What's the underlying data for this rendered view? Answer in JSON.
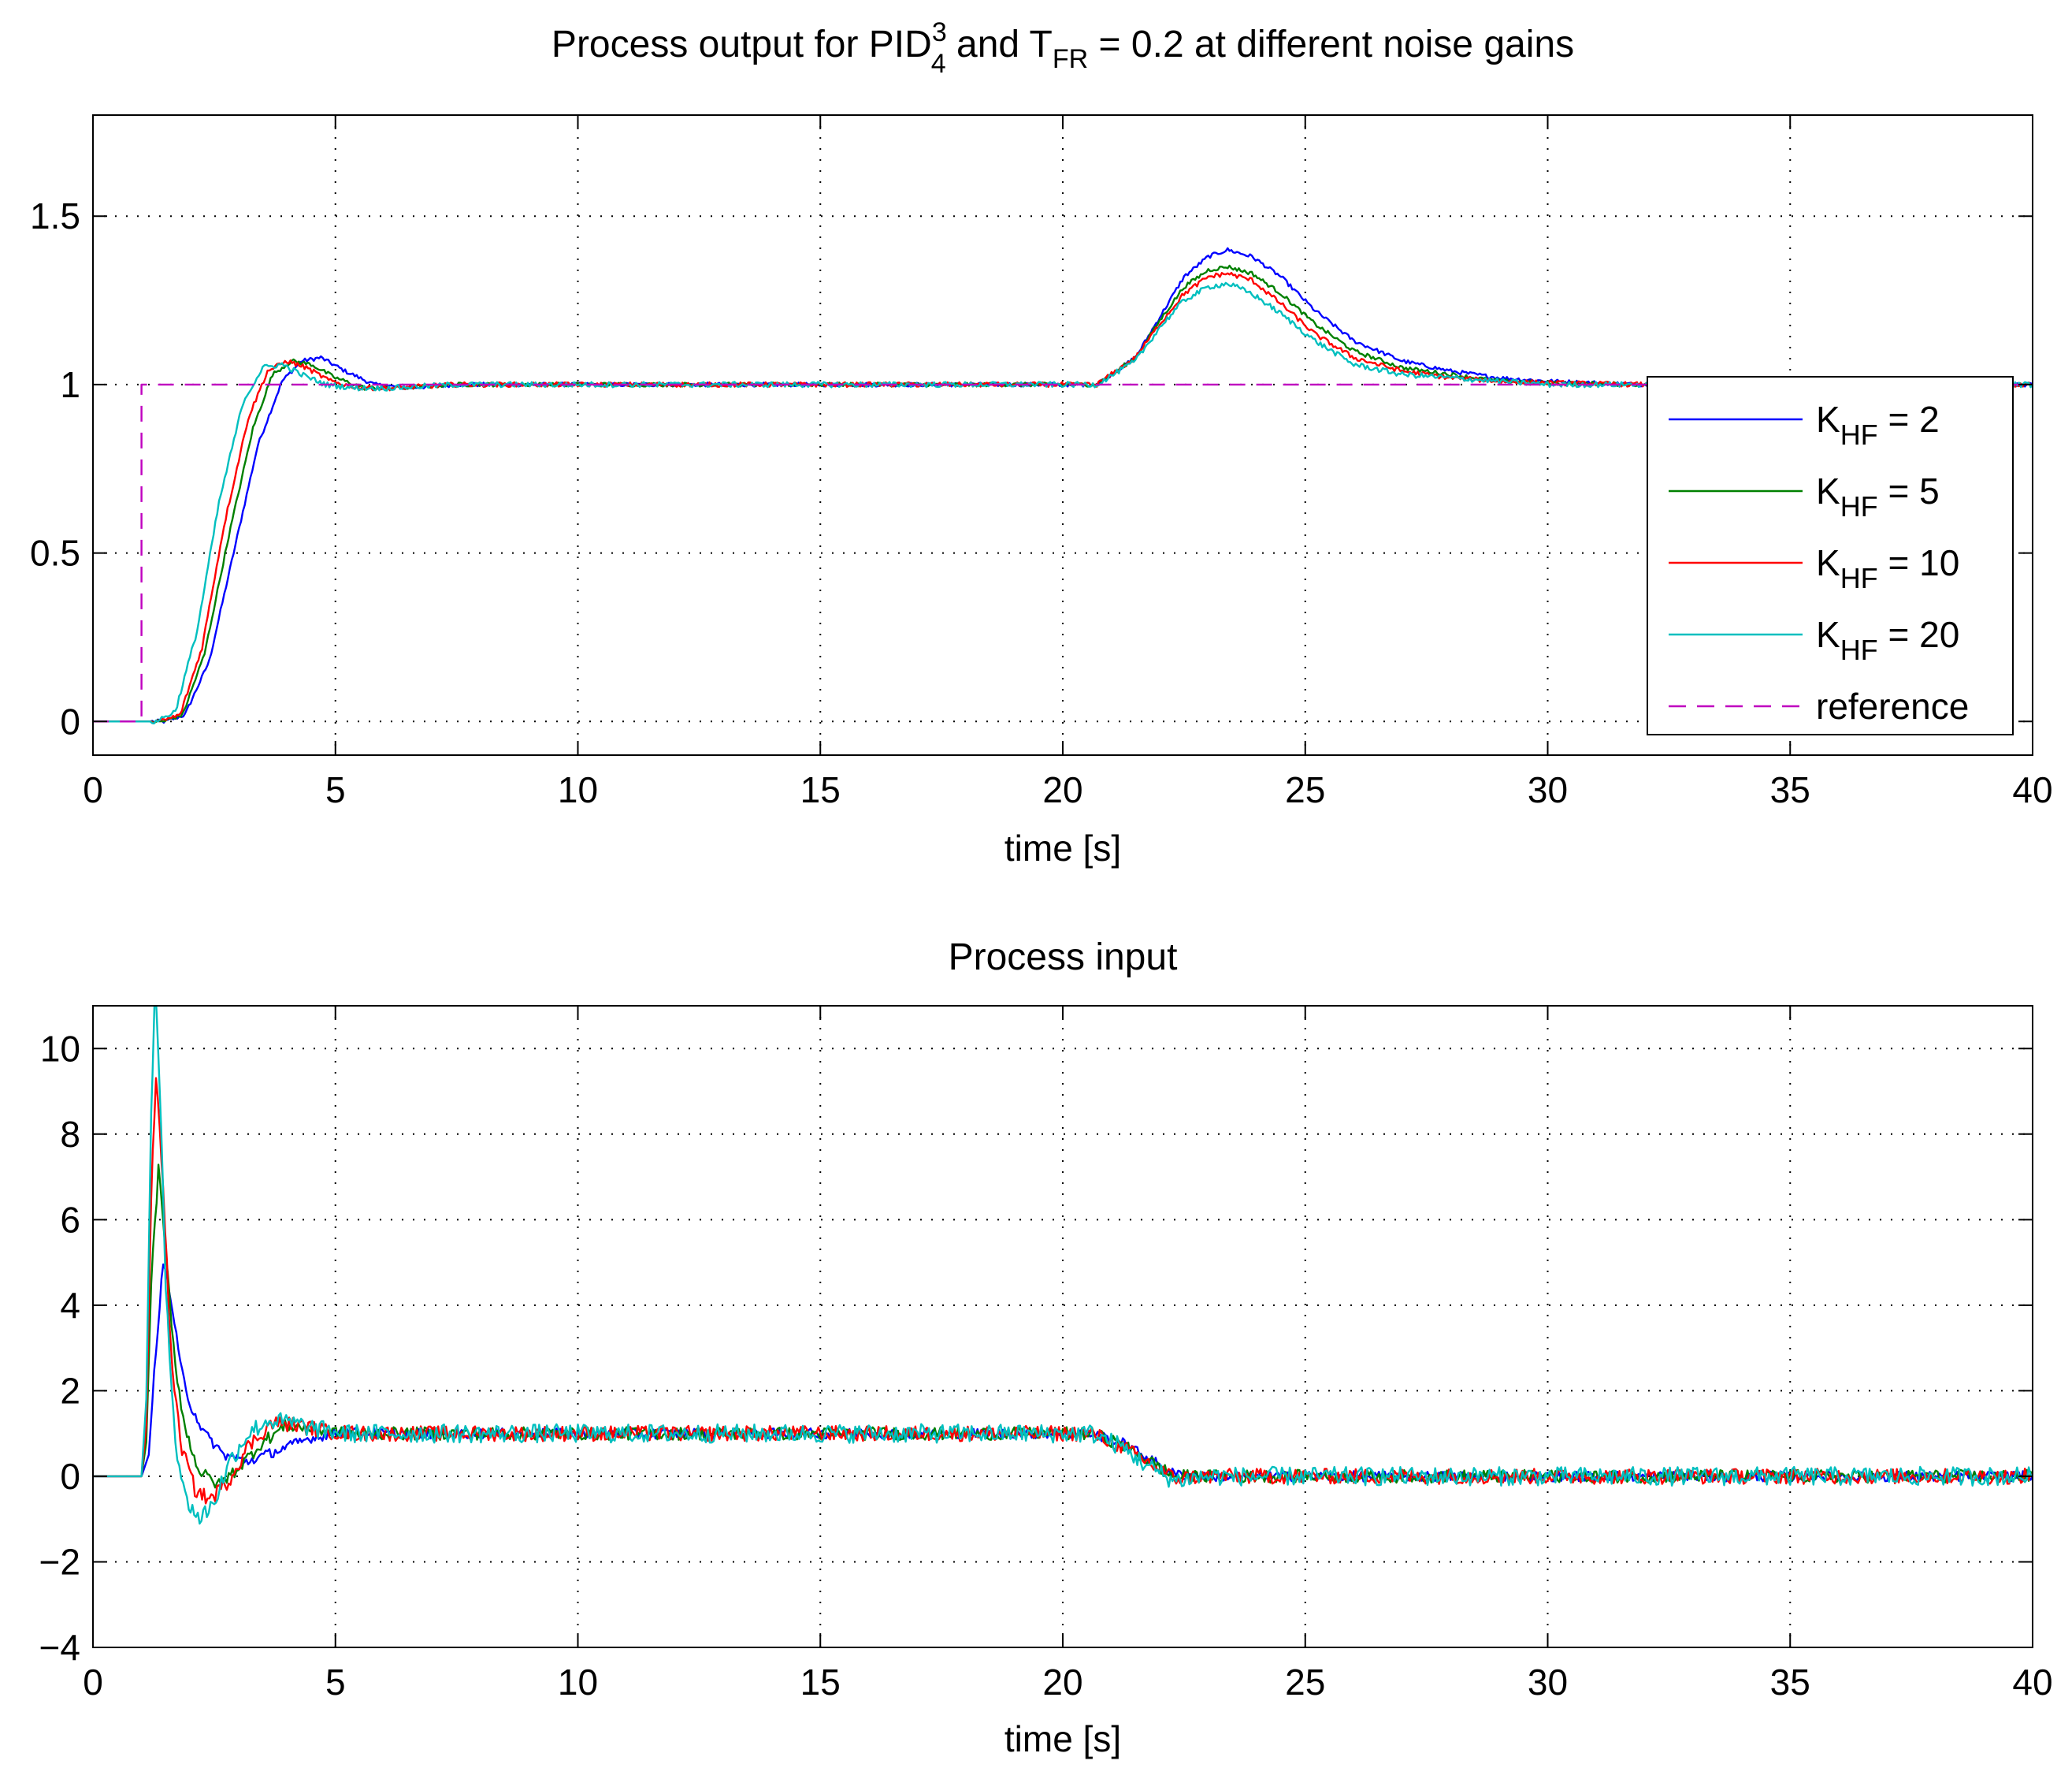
{
  "chart_data": [
    {
      "type": "line",
      "title": {
        "prefix": "Process output for PID",
        "sup": "3",
        "sub": "4",
        "middle": " and T",
        "sub2": "FR",
        "suffix": " = 0.2 at different noise gains"
      },
      "xlabel": "time [s]",
      "ylabel": "",
      "xlim": [
        0,
        40
      ],
      "ylim": [
        -0.1,
        1.8
      ],
      "xticks": [
        0,
        5,
        10,
        15,
        20,
        25,
        30,
        35,
        40
      ],
      "yticks": [
        0,
        0.5,
        1,
        1.5
      ],
      "ytick_labels": [
        "0",
        "0.5",
        "1",
        "1.5"
      ],
      "grid": true,
      "legend_position": "right",
      "legend": [
        {
          "base": "K",
          "sub": "HF",
          "rest": " = 2",
          "color": "#0000ff",
          "dashed": false
        },
        {
          "base": "K",
          "sub": "HF",
          "rest": " = 5",
          "color": "#008000",
          "dashed": false
        },
        {
          "base": "K",
          "sub": "HF",
          "rest": " = 10",
          "color": "#ff0000",
          "dashed": false
        },
        {
          "base": "K",
          "sub": "HF",
          "rest": " = 20",
          "color": "#00bfbf",
          "dashed": false
        },
        {
          "base": "reference",
          "sub": "",
          "rest": "",
          "color": "#bf00bf",
          "dashed": true
        }
      ],
      "series": [
        {
          "name": "K_HF = 2",
          "color": "#0000ff",
          "x": [
            0,
            1.5,
            1.9,
            2.4,
            2.9,
            3.4,
            3.9,
            4.3,
            4.7,
            5.2,
            5.8,
            6.5,
            7.5,
            10,
            20.7,
            21.5,
            22,
            22.5,
            23,
            23.4,
            23.9,
            24.5,
            25.2,
            26,
            27,
            28,
            29,
            30,
            32,
            40
          ],
          "y": [
            0,
            0,
            0.02,
            0.18,
            0.5,
            0.82,
            1.01,
            1.07,
            1.08,
            1.04,
            1.0,
            0.99,
            1.0,
            1.0,
            1.0,
            1.08,
            1.2,
            1.32,
            1.38,
            1.4,
            1.38,
            1.32,
            1.22,
            1.13,
            1.07,
            1.04,
            1.02,
            1.01,
            1.0,
            1.0
          ],
          "noise": 0.006
        },
        {
          "name": "K_HF = 5",
          "color": "#008000",
          "x": [
            0,
            1.45,
            1.85,
            2.3,
            2.8,
            3.3,
            3.7,
            4.1,
            4.5,
            5,
            5.6,
            6.3,
            7.5,
            10,
            20.7,
            21.5,
            22,
            22.5,
            23,
            23.4,
            23.9,
            24.5,
            25.2,
            26,
            27,
            28,
            29,
            30,
            32,
            40
          ],
          "y": [
            0,
            0,
            0.02,
            0.2,
            0.55,
            0.87,
            1.03,
            1.07,
            1.06,
            1.02,
            0.99,
            0.99,
            1.0,
            1.0,
            1.0,
            1.08,
            1.19,
            1.29,
            1.34,
            1.35,
            1.33,
            1.27,
            1.18,
            1.1,
            1.05,
            1.03,
            1.01,
            1.005,
            1.0,
            1.0
          ],
          "noise": 0.006
        },
        {
          "name": "K_HF = 10",
          "color": "#ff0000",
          "x": [
            0,
            1.4,
            1.8,
            2.25,
            2.7,
            3.2,
            3.6,
            4.0,
            4.4,
            4.9,
            5.5,
            6.2,
            7.5,
            10,
            20.7,
            21.5,
            22,
            22.5,
            23,
            23.4,
            23.9,
            24.5,
            25.2,
            26,
            27,
            28,
            29,
            30,
            32,
            40
          ],
          "y": [
            0,
            0,
            0.02,
            0.22,
            0.58,
            0.9,
            1.04,
            1.07,
            1.05,
            1.01,
            0.99,
            0.99,
            1.0,
            1.0,
            1.0,
            1.08,
            1.18,
            1.27,
            1.32,
            1.33,
            1.31,
            1.24,
            1.15,
            1.08,
            1.04,
            1.02,
            1.01,
            1.005,
            1.0,
            1.0
          ],
          "noise": 0.007
        },
        {
          "name": "K_HF = 20",
          "color": "#00bfbf",
          "x": [
            0,
            1.3,
            1.7,
            2.15,
            2.6,
            3.1,
            3.5,
            3.9,
            4.3,
            4.8,
            5.4,
            6.1,
            7.5,
            10,
            20.7,
            21.5,
            22,
            22.5,
            23,
            23.4,
            23.9,
            24.5,
            25.2,
            26,
            27,
            28,
            29,
            30,
            32,
            40
          ],
          "y": [
            0,
            0,
            0.03,
            0.27,
            0.65,
            0.95,
            1.05,
            1.06,
            1.03,
            1.0,
            0.99,
            0.99,
            1.0,
            1.0,
            1.0,
            1.07,
            1.17,
            1.25,
            1.29,
            1.3,
            1.27,
            1.21,
            1.13,
            1.06,
            1.03,
            1.02,
            1.01,
            1.0,
            1.0,
            1.0
          ],
          "noise": 0.008
        },
        {
          "name": "reference",
          "color": "#bf00bf",
          "dashed": true,
          "x": [
            0,
            1,
            1,
            40
          ],
          "y": [
            0,
            0,
            1,
            1
          ],
          "noise": 0
        }
      ]
    },
    {
      "type": "line",
      "title": "Process input",
      "xlabel": "time [s]",
      "ylabel": "",
      "xlim": [
        0,
        40
      ],
      "ylim": [
        -4,
        11
      ],
      "xticks": [
        0,
        5,
        10,
        15,
        20,
        25,
        30,
        35,
        40
      ],
      "yticks": [
        -4,
        -2,
        0,
        2,
        4,
        6,
        8,
        10
      ],
      "ytick_labels": [
        "−4",
        "−2",
        "0",
        "2",
        "4",
        "6",
        "8",
        "10"
      ],
      "grid": true,
      "series": [
        {
          "name": "K_HF = 2",
          "color": "#0000ff",
          "x": [
            0,
            1.0,
            1.15,
            1.3,
            1.45,
            1.6,
            1.8,
            2.0,
            2.3,
            2.7,
            3.2,
            3.8,
            4.5,
            5.2,
            6,
            20.6,
            21.2,
            21.8,
            22.3,
            23,
            40
          ],
          "y": [
            0,
            0,
            0.5,
            3.0,
            5.0,
            4.2,
            2.6,
            1.7,
            1.0,
            0.5,
            0.35,
            0.6,
            0.9,
            1.05,
            1.0,
            1.0,
            0.8,
            0.4,
            0.05,
            0,
            0
          ],
          "noise": 0.12
        },
        {
          "name": "K_HF = 5",
          "color": "#008000",
          "x": [
            0,
            1.0,
            1.1,
            1.2,
            1.35,
            1.5,
            1.7,
            1.9,
            2.2,
            2.6,
            3.0,
            3.5,
            4.0,
            4.6,
            5.2,
            6,
            20.6,
            21.2,
            21.8,
            22.3,
            23,
            40
          ],
          "y": [
            0,
            0,
            0.8,
            4.5,
            7.2,
            5.2,
            2.6,
            1.1,
            0.1,
            -0.2,
            0.2,
            0.8,
            1.2,
            1.1,
            1.0,
            1.0,
            1.0,
            0.75,
            0.35,
            0.0,
            0,
            0
          ],
          "noise": 0.15
        },
        {
          "name": "K_HF = 10",
          "color": "#ff0000",
          "x": [
            0,
            1.0,
            1.1,
            1.2,
            1.3,
            1.45,
            1.6,
            1.8,
            2.1,
            2.4,
            2.8,
            3.2,
            3.7,
            4.2,
            4.8,
            5.5,
            6,
            20.6,
            21.2,
            21.8,
            22.3,
            23,
            40
          ],
          "y": [
            0,
            0,
            1.2,
            6.5,
            9.4,
            6.8,
            3.0,
            0.8,
            -0.3,
            -0.55,
            -0.1,
            0.7,
            1.25,
            1.2,
            1.05,
            1.0,
            1.0,
            1.0,
            0.7,
            0.3,
            -0.05,
            0,
            0
          ],
          "noise": 0.18
        },
        {
          "name": "K_HF = 20",
          "color": "#00bfbf",
          "x": [
            0,
            1.0,
            1.1,
            1.2,
            1.28,
            1.38,
            1.5,
            1.7,
            1.9,
            2.2,
            2.5,
            2.8,
            3.2,
            3.6,
            4.1,
            4.6,
            5.2,
            6,
            20.6,
            21.2,
            21.8,
            22.3,
            23,
            40
          ],
          "y": [
            0,
            0,
            1.8,
            8.5,
            11.5,
            9.0,
            4.5,
            0.8,
            -0.5,
            -1.0,
            -0.6,
            0.3,
            1.0,
            1.3,
            1.25,
            1.1,
            1.0,
            1.0,
            1.0,
            0.7,
            0.2,
            -0.1,
            0,
            0
          ],
          "noise": 0.22
        }
      ]
    }
  ]
}
